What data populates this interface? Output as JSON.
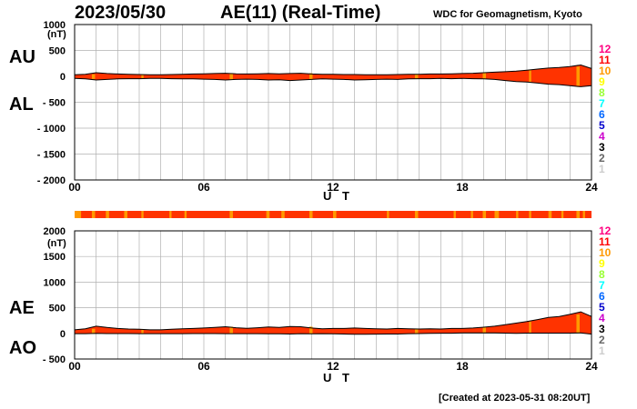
{
  "header": {
    "date": "2023/05/30",
    "title": "AE(11) (Real-Time)",
    "source": "WDC for Geomagnetism, Kyoto"
  },
  "footer": {
    "created": "[Created at 2023-05-31 08:20UT]"
  },
  "scale_key": {
    "levels": [
      "12",
      "11",
      "10",
      "9",
      "8",
      "7",
      "6",
      "5",
      "4",
      "3",
      "2",
      "1"
    ],
    "colors": [
      "#ff0080",
      "#ff0000",
      "#ff9900",
      "#ffff00",
      "#99ff33",
      "#00ffff",
      "#0066ff",
      "#0000cc",
      "#cc00cc",
      "#000000",
      "#666666",
      "#cccccc"
    ]
  },
  "chart_data": [
    {
      "type": "area",
      "panel": "AU/AL",
      "upper_label": "AU",
      "lower_label": "AL",
      "unit": "(nT)",
      "ylim": [
        -2000,
        1000
      ],
      "yticks": [
        1000,
        500,
        0,
        -500,
        -1000,
        -1500,
        -2000
      ],
      "ytick_labels": [
        "1000",
        "500",
        "0",
        "- 500",
        "- 1000",
        "- 1500",
        "- 2000"
      ],
      "xlim": [
        0,
        24
      ],
      "xticks": [
        0,
        6,
        12,
        18,
        24
      ],
      "xtick_labels": [
        "00",
        "06",
        "12",
        "18",
        "24"
      ],
      "xlabel": "U T",
      "fill_color": "#ff3300",
      "highlight_color": "#ff9900",
      "series": [
        {
          "key": "AU",
          "x": [
            0,
            0.5,
            1,
            1.5,
            2,
            2.5,
            3,
            3.5,
            4,
            4.5,
            5,
            5.5,
            6,
            6.5,
            7,
            7.5,
            8,
            8.5,
            9,
            9.5,
            10,
            10.5,
            11,
            11.5,
            12,
            12.5,
            13,
            13.5,
            14,
            14.5,
            15,
            15.5,
            16,
            16.5,
            17,
            17.5,
            18,
            18.5,
            19,
            19.5,
            20,
            20.5,
            21,
            21.5,
            22,
            22.5,
            23,
            23.5,
            24
          ],
          "values": [
            30,
            40,
            70,
            55,
            45,
            40,
            35,
            30,
            30,
            35,
            40,
            45,
            50,
            55,
            60,
            50,
            45,
            50,
            55,
            50,
            55,
            60,
            45,
            40,
            40,
            35,
            35,
            30,
            30,
            30,
            35,
            40,
            40,
            45,
            45,
            50,
            55,
            60,
            70,
            80,
            90,
            100,
            120,
            140,
            160,
            170,
            190,
            220,
            150
          ]
        },
        {
          "key": "AL",
          "x": [
            0,
            0.5,
            1,
            1.5,
            2,
            2.5,
            3,
            3.5,
            4,
            4.5,
            5,
            5.5,
            6,
            6.5,
            7,
            7.5,
            8,
            8.5,
            9,
            9.5,
            10,
            10.5,
            11,
            11.5,
            12,
            12.5,
            13,
            13.5,
            14,
            14.5,
            15,
            15.5,
            16,
            16.5,
            17,
            17.5,
            18,
            18.5,
            19,
            19.5,
            20,
            20.5,
            21,
            21.5,
            22,
            22.5,
            23,
            23.5,
            24
          ],
          "values": [
            -40,
            -50,
            -70,
            -60,
            -50,
            -45,
            -45,
            -40,
            -40,
            -45,
            -50,
            -50,
            -55,
            -60,
            -70,
            -60,
            -55,
            -60,
            -70,
            -65,
            -80,
            -70,
            -60,
            -50,
            -55,
            -60,
            -70,
            -65,
            -60,
            -55,
            -60,
            -50,
            -45,
            -45,
            -40,
            -45,
            -40,
            -45,
            -50,
            -60,
            -80,
            -100,
            -110,
            -130,
            -150,
            -160,
            -180,
            -200,
            -180
          ]
        }
      ]
    },
    {
      "type": "area",
      "panel": "AE/AO",
      "upper_label": "AE",
      "lower_label": "AO",
      "unit": "(nT)",
      "ylim": [
        -500,
        2000
      ],
      "yticks": [
        2000,
        1500,
        1000,
        500,
        0,
        -500
      ],
      "ytick_labels": [
        "2000",
        "1500",
        "1000",
        "500",
        "0",
        "- 500"
      ],
      "xlim": [
        0,
        24
      ],
      "xticks": [
        0,
        6,
        12,
        18,
        24
      ],
      "xtick_labels": [
        "00",
        "06",
        "12",
        "18",
        "24"
      ],
      "xlabel": "U T",
      "fill_color": "#ff3300",
      "highlight_color": "#ff9900",
      "series": [
        {
          "key": "AE",
          "x": [
            0,
            0.5,
            1,
            1.5,
            2,
            2.5,
            3,
            3.5,
            4,
            4.5,
            5,
            5.5,
            6,
            6.5,
            7,
            7.5,
            8,
            8.5,
            9,
            9.5,
            10,
            10.5,
            11,
            11.5,
            12,
            12.5,
            13,
            13.5,
            14,
            14.5,
            15,
            15.5,
            16,
            16.5,
            17,
            17.5,
            18,
            18.5,
            19,
            19.5,
            20,
            20.5,
            21,
            21.5,
            22,
            22.5,
            23,
            23.5,
            24
          ],
          "values": [
            70,
            90,
            140,
            115,
            95,
            85,
            80,
            70,
            70,
            80,
            90,
            95,
            105,
            115,
            130,
            110,
            100,
            110,
            125,
            115,
            135,
            130,
            105,
            90,
            95,
            95,
            105,
            95,
            90,
            85,
            95,
            90,
            85,
            90,
            85,
            95,
            95,
            105,
            120,
            140,
            170,
            200,
            230,
            270,
            310,
            330,
            370,
            420,
            330
          ]
        },
        {
          "key": "AO",
          "x": [
            0,
            0.5,
            1,
            1.5,
            2,
            2.5,
            3,
            3.5,
            4,
            4.5,
            5,
            5.5,
            6,
            6.5,
            7,
            7.5,
            8,
            8.5,
            9,
            9.5,
            10,
            10.5,
            11,
            11.5,
            12,
            12.5,
            13,
            13.5,
            14,
            14.5,
            15,
            15.5,
            16,
            16.5,
            17,
            17.5,
            18,
            18.5,
            19,
            19.5,
            20,
            20.5,
            21,
            21.5,
            22,
            22.5,
            23,
            23.5,
            24
          ],
          "values": [
            -5,
            -5,
            0,
            -3,
            -3,
            -3,
            -5,
            -5,
            -5,
            -5,
            -5,
            -3,
            -3,
            -3,
            -5,
            -5,
            -5,
            -5,
            -8,
            -8,
            -13,
            -5,
            -8,
            -5,
            -8,
            -13,
            -18,
            -18,
            -15,
            -13,
            -13,
            -5,
            -3,
            0,
            3,
            3,
            8,
            8,
            10,
            10,
            5,
            0,
            5,
            5,
            5,
            5,
            5,
            10,
            -15
          ]
        }
      ]
    }
  ],
  "data_coverage": {
    "x_intervals": [
      [
        0,
        0.3
      ],
      [
        0.8,
        0.95
      ],
      [
        1.45,
        1.6
      ],
      [
        2.3,
        2.45
      ],
      [
        3.1,
        3.2
      ],
      [
        4.4,
        4.5
      ],
      [
        5.1,
        5.2
      ],
      [
        7.2,
        7.35
      ],
      [
        8.9,
        9.05
      ],
      [
        9.6,
        9.75
      ],
      [
        10.9,
        11.05
      ],
      [
        12.0,
        12.15
      ],
      [
        14.5,
        14.6
      ],
      [
        15.8,
        15.95
      ],
      [
        17.6,
        17.7
      ],
      [
        18.4,
        18.5
      ],
      [
        18.95,
        19.1
      ],
      [
        19.5,
        19.7
      ],
      [
        20.5,
        20.6
      ],
      [
        21.1,
        21.2
      ],
      [
        22.0,
        22.15
      ],
      [
        22.6,
        22.7
      ],
      [
        23.3,
        23.45
      ],
      [
        23.6,
        23.7
      ]
    ]
  }
}
